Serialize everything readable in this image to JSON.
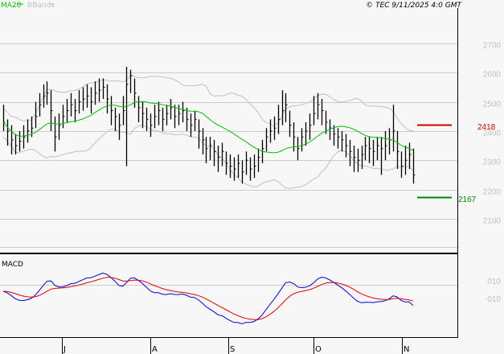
{
  "legend": {
    "ma20": "MA20",
    "bbands": "BBands"
  },
  "copyright": "© TEC 9/11/2025 4:0 GMT",
  "colors": {
    "ma20": "#00c000",
    "bbands": "#c0c0c0",
    "bars": "#000000",
    "resistance": "#cc0000",
    "support": "#008800",
    "macd": "#0000cc",
    "signal": "#dd0000",
    "grid": "#cccccc"
  },
  "chart_data": [
    {
      "type": "ohlc",
      "ylim": [
        2000,
        2800
      ],
      "y_ticks": [
        "2700",
        "2600",
        "2500",
        "2400",
        "2300",
        "2200",
        "2100"
      ],
      "x_ticks": [
        "J",
        "A",
        "S",
        "O",
        "N"
      ],
      "grid": true,
      "indicators": [
        "MA20",
        "BBands"
      ],
      "resistance": {
        "label": "2418",
        "value": 2418
      },
      "support": {
        "label": "2167",
        "value": 2167
      },
      "close": [
        2430,
        2400,
        2370,
        2350,
        2365,
        2380,
        2400,
        2410,
        2450,
        2490,
        2520,
        2530,
        2470,
        2380,
        2420,
        2450,
        2470,
        2490,
        2470,
        2500,
        2510,
        2520,
        2500,
        2530,
        2540,
        2550,
        2510,
        2470,
        2450,
        2420,
        2470,
        2560,
        2590,
        2530,
        2480,
        2460,
        2440,
        2420,
        2450,
        2470,
        2440,
        2460,
        2480,
        2450,
        2460,
        2470,
        2440,
        2420,
        2440,
        2400,
        2370,
        2340,
        2350,
        2330,
        2310,
        2330,
        2290,
        2280,
        2270,
        2290,
        2260,
        2300,
        2270,
        2280,
        2310,
        2340,
        2380,
        2400,
        2410,
        2440,
        2470,
        2490,
        2420,
        2380,
        2340,
        2380,
        2400,
        2420,
        2460,
        2490,
        2470,
        2430,
        2410,
        2390,
        2380,
        2370,
        2350,
        2330,
        2310,
        2300,
        2320,
        2350,
        2340,
        2330,
        2350,
        2340,
        2350,
        2370,
        2400,
        2330,
        2280,
        2300,
        2320,
        2250
      ],
      "high": [
        2490,
        2440,
        2420,
        2390,
        2400,
        2420,
        2440,
        2450,
        2500,
        2530,
        2560,
        2570,
        2540,
        2450,
        2460,
        2490,
        2510,
        2530,
        2510,
        2540,
        2550,
        2560,
        2550,
        2570,
        2580,
        2580,
        2560,
        2520,
        2480,
        2460,
        2520,
        2620,
        2610,
        2580,
        2520,
        2500,
        2480,
        2460,
        2490,
        2500,
        2480,
        2490,
        2510,
        2490,
        2490,
        2500,
        2480,
        2460,
        2470,
        2440,
        2410,
        2380,
        2380,
        2370,
        2350,
        2360,
        2330,
        2320,
        2310,
        2320,
        2300,
        2330,
        2310,
        2320,
        2340,
        2370,
        2410,
        2440,
        2450,
        2490,
        2540,
        2530,
        2470,
        2430,
        2380,
        2410,
        2430,
        2460,
        2520,
        2530,
        2510,
        2470,
        2440,
        2420,
        2410,
        2400,
        2390,
        2370,
        2350,
        2340,
        2350,
        2380,
        2380,
        2370,
        2380,
        2380,
        2400,
        2410,
        2490,
        2400,
        2330,
        2350,
        2360,
        2340
      ],
      "low": [
        2400,
        2350,
        2320,
        2320,
        2330,
        2340,
        2360,
        2380,
        2410,
        2450,
        2480,
        2490,
        2400,
        2330,
        2370,
        2410,
        2430,
        2450,
        2430,
        2460,
        2470,
        2480,
        2460,
        2490,
        2500,
        2510,
        2460,
        2420,
        2400,
        2370,
        2420,
        2280,
        2530,
        2480,
        2430,
        2410,
        2400,
        2380,
        2410,
        2420,
        2400,
        2420,
        2440,
        2410,
        2420,
        2430,
        2400,
        2380,
        2400,
        2340,
        2320,
        2290,
        2300,
        2280,
        2260,
        2280,
        2250,
        2240,
        2230,
        2240,
        2220,
        2250,
        2230,
        2240,
        2260,
        2290,
        2330,
        2360,
        2370,
        2390,
        2420,
        2430,
        2380,
        2330,
        2300,
        2330,
        2350,
        2370,
        2420,
        2440,
        2420,
        2390,
        2370,
        2350,
        2340,
        2330,
        2310,
        2280,
        2260,
        2260,
        2270,
        2300,
        2290,
        2280,
        2300,
        2250,
        2300,
        2320,
        2330,
        2270,
        2240,
        2250,
        2270,
        2220
      ]
    },
    {
      "type": "line",
      "title": "MACD",
      "y_ticks": [
        "010",
        "-010"
      ],
      "series": [
        {
          "name": "MACD"
        },
        {
          "name": "Signal"
        }
      ]
    }
  ]
}
